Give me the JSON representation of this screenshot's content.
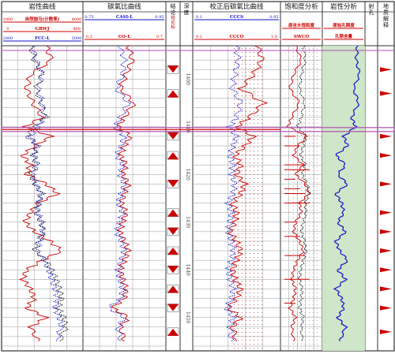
{
  "tracks": [
    {
      "title": "岩性曲线"
    },
    {
      "title": "碳氧比曲线"
    },
    {
      "title": "结论"
    },
    {
      "title": "深度"
    },
    {
      "title": "校正后碳氧比曲线"
    },
    {
      "title": "饱和度分析"
    },
    {
      "title": "岩性分析"
    },
    {
      "title": "射孔"
    },
    {
      "title": "地质解释"
    }
  ],
  "curve_headers": {
    "track1": [
      {
        "name": "自然伽马(计数率)",
        "left": "1000",
        "right": "4000",
        "color": "#cc0000"
      },
      {
        "name": "GRWJ",
        "left": "0",
        "right": "400",
        "color": "#cc0000"
      },
      {
        "name": "FCC-L",
        "left": "2000",
        "right": "5000",
        "color": "#1111cc"
      }
    ],
    "track2": [
      {
        "name": "CASI-L",
        "left": "0.75",
        "right": "0.95",
        "color": "#1111cc"
      },
      {
        "name": "CO-L",
        "left": "0.2",
        "right": "0.7",
        "color": "#cc0000"
      }
    ],
    "track5": [
      {
        "name": "CCCS",
        "left": "0.1",
        "right": "0.95",
        "color": "#1111cc"
      },
      {
        "name": "CCCO",
        "left": "0.1",
        "right": "1.0",
        "color": "#cc0000"
      }
    ],
    "track6": [
      {
        "name": "原含水饱和度",
        "color": "#cc0000"
      },
      {
        "name": "SWCO",
        "color": "#cc0000"
      }
    ],
    "track7": [
      {
        "name": "原始孔隙度",
        "color": "#cc0000"
      },
      {
        "name": "孔隙含量",
        "color": "#cc0000"
      }
    ],
    "conclusion_header": "结论标"
  },
  "depth_labels": [
    "1400",
    "1410",
    "1420",
    "1430",
    "1440",
    "1450"
  ],
  "chart_data": {
    "type": "line",
    "title": "",
    "x_depth": {
      "from": 1393,
      "to": 1457,
      "unit": "m"
    },
    "series": [
      {
        "name": "GRWJ",
        "track": 1,
        "color": "#cc0000",
        "depth": [
          1393,
          1396,
          1399,
          1402,
          1405,
          1408,
          1410,
          1412,
          1414,
          1416,
          1418,
          1420,
          1422,
          1424,
          1426,
          1428,
          1430,
          1432,
          1434,
          1436,
          1438,
          1440,
          1442,
          1444,
          1446,
          1448,
          1450,
          1452,
          1455
        ],
        "value": [
          0.55,
          0.62,
          0.35,
          0.3,
          0.38,
          0.5,
          0.28,
          0.62,
          0.4,
          0.25,
          0.35,
          0.3,
          0.55,
          0.7,
          0.45,
          0.35,
          0.28,
          0.4,
          0.6,
          0.75,
          0.5,
          0.3,
          0.25,
          0.35,
          0.4,
          0.3,
          0.55,
          0.35,
          0.45
        ]
      },
      {
        "name": "自然伽马(计数率)",
        "track": 1,
        "color": "#222222",
        "depth": [
          1393,
          1396,
          1399,
          1402,
          1405,
          1408,
          1410,
          1412,
          1414,
          1416,
          1418,
          1420,
          1422,
          1424,
          1426,
          1428,
          1430,
          1432,
          1434,
          1436,
          1438,
          1440,
          1442,
          1444,
          1446,
          1448,
          1450,
          1452,
          1455
        ],
        "value": [
          0.35,
          0.4,
          0.5,
          0.42,
          0.48,
          0.55,
          0.4,
          0.3,
          0.45,
          0.38,
          0.42,
          0.35,
          0.4,
          0.5,
          0.45,
          0.42,
          0.48,
          0.52,
          0.45,
          0.4,
          0.55,
          0.62,
          0.68,
          0.72,
          0.75,
          0.7,
          0.78,
          0.8,
          0.72
        ]
      },
      {
        "name": "FCC-L",
        "track": 1,
        "color": "#1111cc",
        "depth": [
          1393,
          1396,
          1399,
          1402,
          1405,
          1408,
          1410,
          1412,
          1414,
          1416,
          1418,
          1420,
          1422,
          1424,
          1426,
          1428,
          1430,
          1432,
          1434,
          1436,
          1438,
          1440,
          1442,
          1444,
          1446,
          1448,
          1450,
          1452,
          1455
        ],
        "value": [
          0.38,
          0.42,
          0.5,
          0.45,
          0.5,
          0.52,
          0.45,
          0.35,
          0.42,
          0.4,
          0.44,
          0.38,
          0.42,
          0.48,
          0.46,
          0.44,
          0.5,
          0.5,
          0.47,
          0.44,
          0.52,
          0.58,
          0.62,
          0.66,
          0.7,
          0.66,
          0.72,
          0.74,
          0.68
        ]
      },
      {
        "name": "CO-L",
        "track": 2,
        "color": "#cc0000",
        "depth": [
          1393,
          1396,
          1399,
          1402,
          1405,
          1408,
          1410,
          1412,
          1414,
          1416,
          1418,
          1420,
          1422,
          1424,
          1426,
          1428,
          1430,
          1432,
          1434,
          1436,
          1438,
          1440,
          1442,
          1444,
          1446,
          1448,
          1450,
          1452,
          1455
        ],
        "value": [
          0.55,
          0.6,
          0.52,
          0.45,
          0.62,
          0.5,
          0.42,
          0.58,
          0.5,
          0.45,
          0.52,
          0.48,
          0.55,
          0.5,
          0.46,
          0.52,
          0.48,
          0.44,
          0.5,
          0.55,
          0.5,
          0.45,
          0.48,
          0.52,
          0.5,
          0.35,
          0.55,
          0.45,
          0.5
        ]
      },
      {
        "name": "CASI-L",
        "track": 2,
        "color": "#1111cc",
        "depth": [
          1393,
          1396,
          1399,
          1402,
          1405,
          1408,
          1410,
          1412,
          1414,
          1416,
          1418,
          1420,
          1422,
          1424,
          1426,
          1428,
          1430,
          1432,
          1434,
          1436,
          1438,
          1440,
          1442,
          1444,
          1446,
          1448,
          1450,
          1452,
          1455
        ],
        "value": [
          0.45,
          0.5,
          0.48,
          0.4,
          0.55,
          0.45,
          0.38,
          0.5,
          0.46,
          0.4,
          0.48,
          0.44,
          0.5,
          0.46,
          0.42,
          0.48,
          0.44,
          0.4,
          0.46,
          0.5,
          0.46,
          0.42,
          0.44,
          0.48,
          0.46,
          0.3,
          0.5,
          0.42,
          0.46
        ]
      },
      {
        "name": "CCCO",
        "track": 5,
        "color": "#cc0000",
        "depth": [
          1393,
          1396,
          1399,
          1402,
          1405,
          1408,
          1410,
          1412,
          1414,
          1416,
          1418,
          1420,
          1422,
          1424,
          1426,
          1428,
          1430,
          1432,
          1434,
          1436,
          1438,
          1440,
          1442,
          1444,
          1446,
          1448,
          1450,
          1452,
          1455
        ],
        "value": [
          0.75,
          0.8,
          0.7,
          0.55,
          0.82,
          0.65,
          0.5,
          0.7,
          0.6,
          0.48,
          0.55,
          0.5,
          0.6,
          0.55,
          0.45,
          0.5,
          0.48,
          0.42,
          0.5,
          0.55,
          0.5,
          0.45,
          0.48,
          0.55,
          0.5,
          0.4,
          0.55,
          0.45,
          0.5
        ]
      },
      {
        "name": "CCCS",
        "track": 5,
        "color": "#1111cc",
        "depth": [
          1393,
          1396,
          1399,
          1402,
          1405,
          1408,
          1410,
          1412,
          1414,
          1416,
          1418,
          1420,
          1422,
          1424,
          1426,
          1428,
          1430,
          1432,
          1434,
          1436,
          1438,
          1440,
          1442,
          1444,
          1446,
          1448,
          1450,
          1452,
          1455
        ],
        "value": [
          0.5,
          0.52,
          0.48,
          0.45,
          0.55,
          0.5,
          0.42,
          0.5,
          0.46,
          0.42,
          0.46,
          0.44,
          0.48,
          0.46,
          0.4,
          0.44,
          0.42,
          0.4,
          0.44,
          0.46,
          0.44,
          0.4,
          0.42,
          0.46,
          0.44,
          0.38,
          0.46,
          0.42,
          0.44
        ]
      },
      {
        "name": "SWCO",
        "track": 6,
        "color": "#cc0000",
        "depth": [
          1393,
          1396,
          1399,
          1402,
          1405,
          1408,
          1410,
          1412,
          1414,
          1416,
          1418,
          1420,
          1422,
          1424,
          1426,
          1428,
          1430,
          1432,
          1434,
          1436,
          1438,
          1440,
          1442,
          1444,
          1446,
          1448,
          1450,
          1452,
          1455
        ],
        "value": [
          0.35,
          0.5,
          0.3,
          0.2,
          0.45,
          0.25,
          0.15,
          0.65,
          0.4,
          0.3,
          0.55,
          0.35,
          0.6,
          0.7,
          0.45,
          0.5,
          0.35,
          0.3,
          0.45,
          0.55,
          0.4,
          0.3,
          0.25,
          0.35,
          0.3,
          0.2,
          0.35,
          0.25,
          0.3
        ]
      },
      {
        "name": "原含水饱和度",
        "track": 6,
        "color": "#222222",
        "depth": [
          1393,
          1396,
          1399,
          1402,
          1405,
          1408,
          1410,
          1412,
          1414,
          1416,
          1418,
          1420,
          1422,
          1424,
          1426,
          1428,
          1430,
          1432,
          1434,
          1436,
          1438,
          1440,
          1442,
          1444,
          1446,
          1448,
          1450,
          1452,
          1455
        ],
        "value": [
          0.55,
          0.6,
          0.5,
          0.45,
          0.58,
          0.5,
          0.4,
          0.62,
          0.55,
          0.48,
          0.6,
          0.52,
          0.65,
          0.7,
          0.6,
          0.62,
          0.55,
          0.5,
          0.58,
          0.62,
          0.55,
          0.48,
          0.45,
          0.52,
          0.5,
          0.45,
          0.55,
          0.5,
          0.52
        ]
      },
      {
        "name": "孔隙含量",
        "track": 7,
        "color": "#1111cc",
        "depth": [
          1393,
          1396,
          1399,
          1402,
          1405,
          1408,
          1410,
          1412,
          1414,
          1416,
          1418,
          1420,
          1422,
          1424,
          1426,
          1428,
          1430,
          1432,
          1434,
          1436,
          1438,
          1440,
          1442,
          1444,
          1446,
          1448,
          1450,
          1452,
          1455
        ],
        "value": [
          0.85,
          0.82,
          0.9,
          0.75,
          0.88,
          0.7,
          0.8,
          0.5,
          0.6,
          0.3,
          0.55,
          0.35,
          0.6,
          0.3,
          0.45,
          0.5,
          0.35,
          0.55,
          0.3,
          0.4,
          0.6,
          0.35,
          0.55,
          0.3,
          0.45,
          0.5,
          0.35,
          0.55,
          0.4
        ]
      }
    ],
    "conclusion_markers": [
      1398,
      1403,
      1412,
      1416,
      1422,
      1428,
      1432,
      1436,
      1440,
      1444,
      1448,
      1453
    ]
  },
  "colors": {
    "grid": "#9a9a9a",
    "frame": "#333333",
    "red": "#cc0000",
    "blue": "#1111cc",
    "lithology_fill": "#cfe6c9",
    "purple_band": "#b04fb0"
  }
}
